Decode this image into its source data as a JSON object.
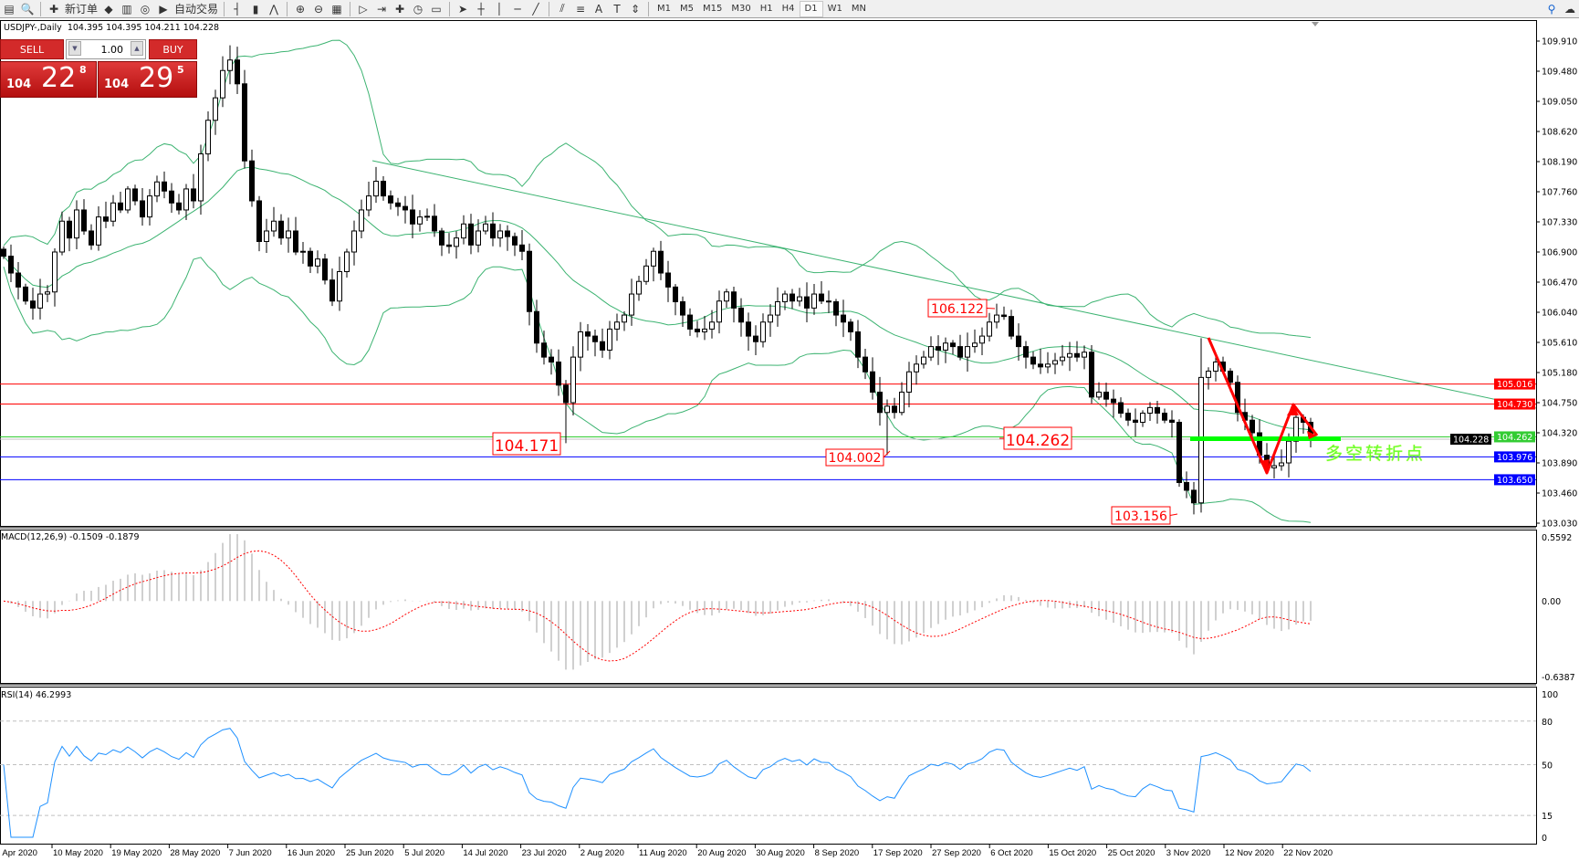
{
  "toolbar": {
    "new_order": "新订单",
    "auto_trading": "自动交易",
    "timeframes": [
      "M1",
      "M5",
      "M15",
      "M30",
      "H1",
      "H4",
      "D1",
      "W1",
      "MN"
    ],
    "active_timeframe": "D1",
    "icons": [
      "chart-window-icon",
      "zoom-search-icon",
      "new-order-icon",
      "market-watch-icon",
      "history-icon",
      "signal-icon",
      "auto-trading-icon",
      "bar-chart-icon",
      "candlestick-icon",
      "line-chart-icon",
      "zoom-in-icon",
      "zoom-out-icon",
      "tile-windows-icon",
      "auto-scroll-icon",
      "chart-shift-icon",
      "indicators-icon",
      "periods-icon",
      "templates-icon",
      "cursor-icon",
      "crosshair-icon",
      "vertical-line-icon",
      "horizontal-line-icon",
      "trendline-icon",
      "equidistant-channel-icon",
      "fibonacci-icon",
      "text-icon",
      "text-label-icon",
      "arrows-icon"
    ]
  },
  "chart": {
    "title": "USDJPY-,Daily",
    "ohlc": "104.395 104.395 104.211 104.228"
  },
  "trade_panel": {
    "sell": "SELL",
    "buy": "BUY",
    "lot": "1.00",
    "bid": {
      "big": "104",
      "main": "22",
      "pip": "8"
    },
    "ask": {
      "big": "104",
      "main": "29",
      "pip": "5"
    }
  },
  "annotation_text": "多空转折点",
  "chart_data": {
    "type": "candlestick",
    "symbol": "USDJPY-",
    "timeframe": "Daily",
    "closes": [
      106.84,
      106.6,
      106.4,
      106.2,
      106.1,
      106.3,
      106.33,
      106.9,
      107.34,
      107.1,
      107.5,
      107.2,
      107.0,
      107.4,
      107.34,
      107.6,
      107.5,
      107.8,
      107.63,
      107.4,
      107.7,
      107.9,
      107.77,
      107.6,
      107.5,
      107.8,
      107.63,
      108.3,
      108.78,
      109.1,
      109.49,
      109.64,
      109.3,
      108.2,
      107.63,
      107.05,
      107.2,
      107.34,
      107.1,
      107.2,
      106.9,
      106.91,
      106.7,
      106.8,
      106.5,
      106.2,
      106.62,
      106.9,
      107.2,
      107.5,
      107.7,
      107.91,
      107.7,
      107.6,
      107.55,
      107.5,
      107.3,
      107.4,
      107.41,
      107.2,
      107.0,
      106.98,
      107.1,
      107.3,
      107.0,
      107.2,
      107.3,
      107.1,
      107.2,
      107.12,
      107.0,
      106.91,
      106.05,
      105.6,
      105.4,
      105.33,
      105.0,
      104.75,
      105.4,
      105.76,
      105.7,
      105.62,
      105.5,
      105.8,
      105.9,
      106.0,
      106.3,
      106.48,
      106.7,
      106.91,
      106.6,
      106.4,
      106.19,
      106.0,
      105.8,
      105.76,
      105.8,
      105.9,
      106.2,
      106.33,
      106.1,
      105.9,
      105.7,
      105.62,
      105.9,
      106.0,
      106.19,
      106.3,
      106.2,
      106.26,
      106.1,
      106.3,
      106.2,
      106.19,
      106.0,
      105.9,
      105.76,
      105.4,
      105.19,
      104.9,
      104.61,
      104.7,
      104.61,
      104.9,
      105.19,
      105.3,
      105.4,
      105.55,
      105.5,
      105.6,
      105.55,
      105.4,
      105.55,
      105.6,
      105.7,
      105.9,
      106.0,
      105.98,
      105.7,
      105.55,
      105.4,
      105.3,
      105.26,
      105.3,
      105.35,
      105.4,
      105.45,
      105.4,
      105.47,
      104.83,
      104.9,
      104.8,
      104.75,
      104.6,
      104.5,
      104.47,
      104.6,
      104.68,
      104.6,
      104.5,
      104.47,
      103.61,
      103.5,
      103.32,
      105.11,
      105.2,
      105.33,
      105.2,
      105.04,
      104.61,
      104.5,
      104.32,
      104.0,
      103.82,
      103.85,
      103.89,
      104.2,
      104.54,
      104.47,
      104.228
    ],
    "price_ticks": [
      "109.910",
      "109.480",
      "109.050",
      "108.620",
      "108.190",
      "107.760",
      "107.330",
      "106.900",
      "106.470",
      "106.040",
      "105.610",
      "105.180",
      "104.750",
      "104.320",
      "103.890",
      "103.460",
      "103.030"
    ],
    "ylim": [
      103.03,
      109.91
    ],
    "hlines": [
      {
        "price": "105.016",
        "color": "#ff0000"
      },
      {
        "price": "104.730",
        "color": "#ff0000"
      },
      {
        "price": "104.262",
        "color": "#33cc33"
      },
      {
        "price": "104.228",
        "color": "#000000"
      },
      {
        "price": "103.976",
        "color": "#0000ff"
      },
      {
        "price": "103.650",
        "color": "#0000ff"
      }
    ],
    "price_labels": [
      {
        "text": "104.171",
        "bar": 77,
        "kind": "low"
      },
      {
        "text": "104.002",
        "bar": 121,
        "kind": "low"
      },
      {
        "text": "104.262",
        "bar": 150,
        "kind": "level"
      },
      {
        "text": "106.122",
        "bar": 137,
        "kind": "high"
      },
      {
        "text": "103.156",
        "bar": 163,
        "kind": "low"
      }
    ],
    "extremes": [
      {
        "bar": 31,
        "high": 109.85
      },
      {
        "bar": 77,
        "low": 104.171
      },
      {
        "bar": 121,
        "low": 104.002
      },
      {
        "bar": 137,
        "high": 106.122
      },
      {
        "bar": 163,
        "low": 103.156
      },
      {
        "bar": 164,
        "high": 105.67
      }
    ],
    "bollinger": {
      "period": 20,
      "deviation": 2,
      "color": "#3cb371"
    },
    "date_labels": [
      "0 Apr 2020",
      "10 May 2020",
      "19 May 2020",
      "28 May 2020",
      "7 Jun 2020",
      "16 Jun 2020",
      "25 Jun 2020",
      "5 Jul 2020",
      "14 Jul 2020",
      "23 Jul 2020",
      "2 Aug 2020",
      "11 Aug 2020",
      "20 Aug 2020",
      "30 Aug 2020",
      "8 Sep 2020",
      "17 Sep 2020",
      "27 Sep 2020",
      "6 Oct 2020",
      "15 Oct 2020",
      "25 Oct 2020",
      "3 Nov 2020",
      "12 Nov 2020",
      "22 Nov 2020"
    ],
    "macd": {
      "label": "MACD(12,26,9) -0.1509 -0.1879",
      "ticks": [
        "0.5592",
        "0.00",
        "-0.6387"
      ],
      "ylim": [
        -0.6387,
        0.5592
      ],
      "histogram_color": "#c0c0c0",
      "signal_color": "#ff0000"
    },
    "rsi": {
      "label": "RSI(14) 46.2993",
      "ticks": [
        "100",
        "80",
        "50",
        "15",
        "0"
      ],
      "levels": [
        80,
        50,
        15
      ],
      "ylim": [
        0,
        100
      ],
      "color": "#1e90ff"
    }
  }
}
